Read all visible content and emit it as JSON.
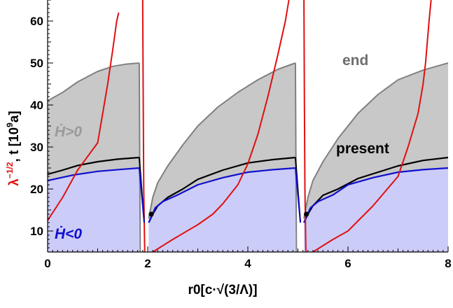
{
  "chart_data": {
    "type": "area",
    "xlim": [
      0,
      8
    ],
    "ylim": [
      5,
      65
    ],
    "x_ticks": [
      0,
      2,
      4,
      6,
      8
    ],
    "y_ticks": [
      10,
      20,
      30,
      40,
      50,
      60
    ],
    "xlabel": "r0[c·√(3/Λ)]",
    "ylabel": "λ^-1/2, t [10^9a]",
    "ylabel_main": "t [10",
    "ylabel_exp": "9",
    "ylabel_unit": "a]",
    "ylabel_lambda": "λ",
    "ylabel_lambda_exp": "−1/2",
    "annotations": {
      "end": "end",
      "present": "present",
      "h_positive": "Ḣ>0",
      "h_negative": "Ḣ<0"
    },
    "colors": {
      "end_fill": "#c8c8c8",
      "end_line": "#808080",
      "present_line": "#000000",
      "decel_fill": "#ccccf8",
      "decel_line": "#1010d0",
      "lambda_line": "#e01010",
      "marker": "#000000"
    },
    "series": [
      {
        "role": "end",
        "segments": [
          [
            [
              0,
              41
            ],
            [
              0.3,
              43
            ],
            [
              0.6,
              45.5
            ],
            [
              1.0,
              48
            ],
            [
              1.3,
              49.2
            ],
            [
              1.55,
              49.7
            ],
            [
              1.83,
              50
            ]
          ],
          [
            [
              2.02,
              13
            ],
            [
              2.1,
              18
            ],
            [
              2.2,
              21.5
            ],
            [
              2.4,
              25.5
            ],
            [
              2.7,
              30.5
            ],
            [
              3.0,
              35
            ],
            [
              3.4,
              39.5
            ],
            [
              3.8,
              43
            ],
            [
              4.2,
              46
            ],
            [
              4.6,
              48.5
            ],
            [
              4.95,
              50
            ]
          ],
          [
            [
              5.12,
              13
            ],
            [
              5.2,
              18
            ],
            [
              5.3,
              22
            ],
            [
              5.5,
              26.5
            ],
            [
              5.8,
              32
            ],
            [
              6.2,
              38
            ],
            [
              6.6,
              42.5
            ],
            [
              7.0,
              46
            ],
            [
              7.5,
              48.3
            ],
            [
              8.0,
              50
            ]
          ]
        ]
      },
      {
        "role": "present",
        "segments": [
          [
            [
              0,
              23.5
            ],
            [
              0.3,
              24.5
            ],
            [
              0.6,
              25.6
            ],
            [
              1.0,
              26.5
            ],
            [
              1.4,
              27.1
            ],
            [
              1.83,
              27.5
            ]
          ],
          [
            [
              2.02,
              12
            ],
            [
              2.1,
              14
            ],
            [
              2.2,
              16
            ],
            [
              2.4,
              18
            ],
            [
              2.7,
              20
            ],
            [
              3.0,
              22.3
            ],
            [
              3.5,
              24.5
            ],
            [
              4.0,
              26.2
            ],
            [
              4.5,
              27
            ],
            [
              4.95,
              27.5
            ]
          ],
          [
            [
              5.12,
              12
            ],
            [
              5.2,
              14
            ],
            [
              5.3,
              16
            ],
            [
              5.5,
              18.5
            ],
            [
              5.8,
              20
            ],
            [
              6.2,
              22.5
            ],
            [
              6.6,
              24
            ],
            [
              7.0,
              25.5
            ],
            [
              7.5,
              26.8
            ],
            [
              8.0,
              27.5
            ]
          ]
        ]
      },
      {
        "role": "decelerating_boundary",
        "segments": [
          [
            [
              0,
              22
            ],
            [
              0.5,
              23.3
            ],
            [
              1.0,
              24.2
            ],
            [
              1.5,
              24.7
            ],
            [
              1.83,
              25
            ]
          ],
          [
            [
              2.02,
              12
            ],
            [
              2.15,
              15.5
            ],
            [
              2.3,
              17
            ],
            [
              2.6,
              18.6
            ],
            [
              3.0,
              21
            ],
            [
              3.5,
              22.7
            ],
            [
              4.0,
              24
            ],
            [
              4.5,
              24.6
            ],
            [
              4.95,
              25
            ]
          ],
          [
            [
              5.12,
              12
            ],
            [
              5.25,
              15.5
            ],
            [
              5.4,
              17
            ],
            [
              5.7,
              18.6
            ],
            [
              6.0,
              21
            ],
            [
              6.5,
              22.7
            ],
            [
              7.0,
              24
            ],
            [
              7.5,
              24.6
            ],
            [
              8.0,
              25
            ]
          ]
        ]
      },
      {
        "role": "lambda_inverse_sqrt",
        "segments": [
          [
            [
              0,
              12.5
            ],
            [
              0.3,
              18
            ],
            [
              0.6,
              24.5
            ],
            [
              1.0,
              31
            ],
            [
              1.1,
              38
            ],
            [
              1.2,
              45
            ],
            [
              1.3,
              53
            ],
            [
              1.38,
              60
            ],
            [
              1.42,
              62
            ]
          ],
          [
            [
              1.9,
              65
            ],
            [
              1.91,
              40
            ],
            [
              1.92,
              20
            ],
            [
              1.94,
              5
            ]
          ],
          [
            [
              2.1,
              5
            ],
            [
              2.5,
              8
            ],
            [
              3.0,
              11.5
            ],
            [
              3.3,
              14
            ],
            [
              3.5,
              16.5
            ],
            [
              3.8,
              21
            ],
            [
              4.0,
              26
            ],
            [
              4.2,
              33
            ],
            [
              4.4,
              42
            ],
            [
              4.6,
              52
            ],
            [
              4.75,
              60
            ],
            [
              4.82,
              65
            ]
          ],
          [
            [
              5.12,
              65
            ],
            [
              5.13,
              40
            ],
            [
              5.14,
              20
            ],
            [
              5.16,
              5
            ]
          ],
          [
            [
              5.3,
              5
            ],
            [
              5.7,
              8
            ],
            [
              6.0,
              10
            ],
            [
              6.5,
              16
            ],
            [
              7.0,
              23
            ],
            [
              7.2,
              30
            ],
            [
              7.4,
              38
            ],
            [
              7.5,
              45
            ],
            [
              7.55,
              50
            ],
            [
              7.62,
              60
            ],
            [
              7.66,
              65
            ]
          ]
        ]
      }
    ],
    "markers": [
      [
        2.07,
        14
      ],
      [
        5.17,
        14
      ]
    ]
  }
}
